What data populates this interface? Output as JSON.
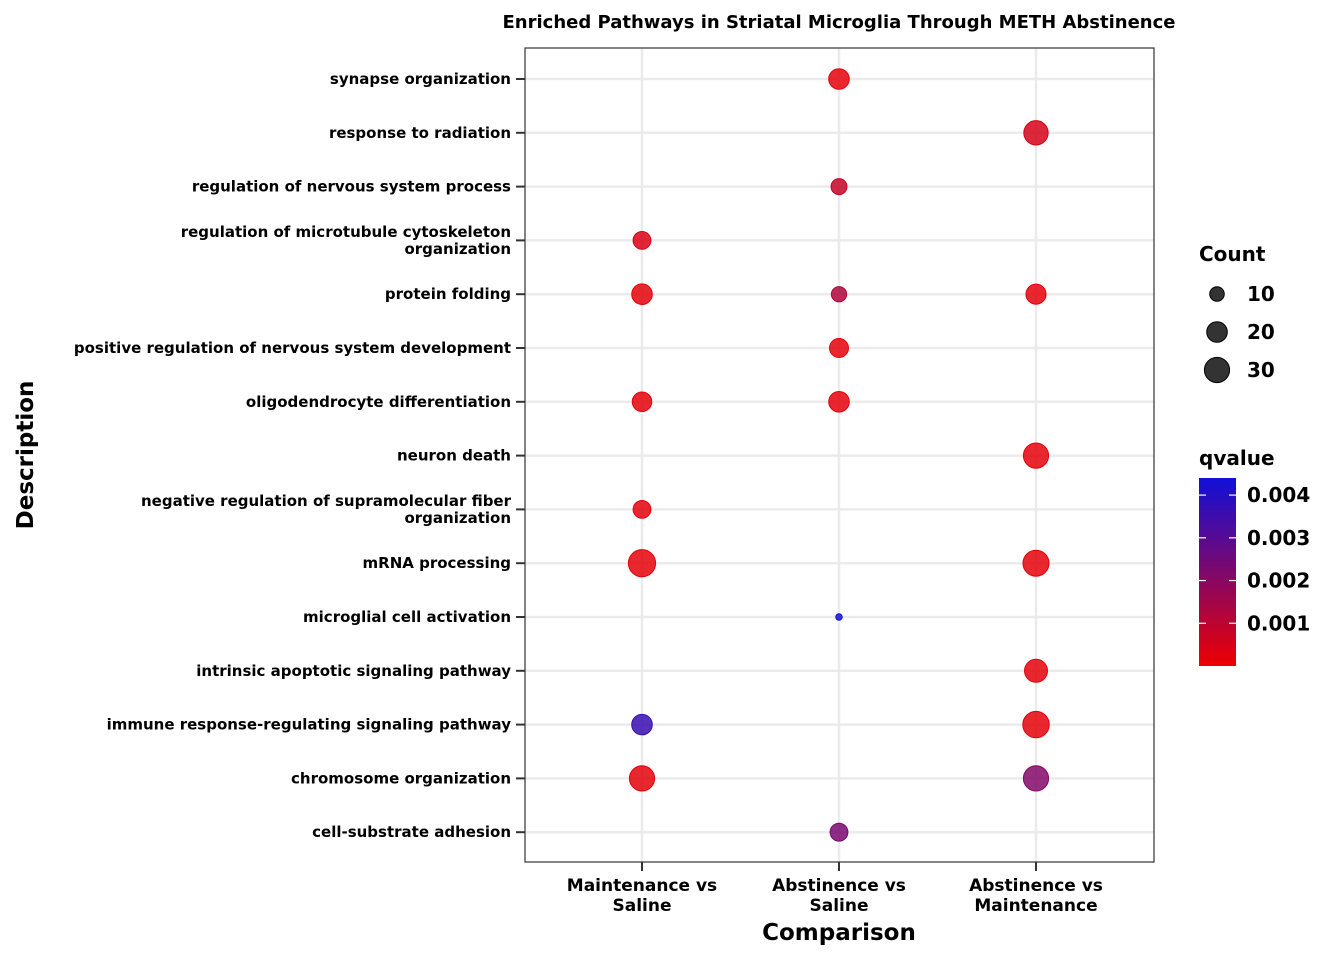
{
  "chart_data": {
    "type": "scatter",
    "title": "Enriched Pathways in Striatal Microglia Through METH Abstinence",
    "xlabel": "Comparison",
    "ylabel": "Description",
    "grid": true,
    "legend_position": "right",
    "x_categories": [
      [
        "Maintenance vs",
        "Saline"
      ],
      [
        "Abstinence vs",
        "Saline"
      ],
      [
        "Abstinence vs",
        "Maintenance"
      ]
    ],
    "y_categories": [
      [
        "synapse organization"
      ],
      [
        "response to radiation"
      ],
      [
        "regulation of nervous system process"
      ],
      [
        "regulation of microtubule cytoskeleton",
        "organization"
      ],
      [
        "protein folding"
      ],
      [
        "positive regulation of nervous system development"
      ],
      [
        "oligodendrocyte differentiation"
      ],
      [
        "neuron death"
      ],
      [
        "negative regulation of supramolecular fiber",
        "organization"
      ],
      [
        "mRNA processing"
      ],
      [
        "microglial cell activation"
      ],
      [
        "intrinsic apoptotic signaling pathway"
      ],
      [
        "immune response-regulating signaling pathway"
      ],
      [
        "chromosome organization"
      ],
      [
        "cell-substrate adhesion"
      ]
    ],
    "points": [
      {
        "y": 0,
        "x": 1,
        "count": 20,
        "qvalue": 0.0002
      },
      {
        "y": 1,
        "x": 2,
        "count": 28,
        "qvalue": 0.0005
      },
      {
        "y": 2,
        "x": 1,
        "count": 12,
        "qvalue": 0.0008
      },
      {
        "y": 3,
        "x": 0,
        "count": 15,
        "qvalue": 0.0004
      },
      {
        "y": 4,
        "x": 0,
        "count": 20,
        "qvalue": 0.0002
      },
      {
        "y": 4,
        "x": 1,
        "count": 11,
        "qvalue": 0.0012
      },
      {
        "y": 4,
        "x": 2,
        "count": 19,
        "qvalue": 0.0002
      },
      {
        "y": 5,
        "x": 1,
        "count": 17,
        "qvalue": 0.0002
      },
      {
        "y": 6,
        "x": 0,
        "count": 18,
        "qvalue": 0.0002
      },
      {
        "y": 6,
        "x": 1,
        "count": 20,
        "qvalue": 0.0002
      },
      {
        "y": 7,
        "x": 2,
        "count": 30,
        "qvalue": 0.0002
      },
      {
        "y": 8,
        "x": 0,
        "count": 15,
        "qvalue": 0.0002
      },
      {
        "y": 9,
        "x": 0,
        "count": 35,
        "qvalue": 0.0002
      },
      {
        "y": 9,
        "x": 2,
        "count": 32,
        "qvalue": 0.0002
      },
      {
        "y": 10,
        "x": 1,
        "count": 2,
        "qvalue": 0.0045
      },
      {
        "y": 11,
        "x": 2,
        "count": 25,
        "qvalue": 0.0002
      },
      {
        "y": 12,
        "x": 0,
        "count": 20,
        "qvalue": 0.0036
      },
      {
        "y": 12,
        "x": 2,
        "count": 33,
        "qvalue": 0.0002
      },
      {
        "y": 13,
        "x": 0,
        "count": 30,
        "qvalue": 0.0002
      },
      {
        "y": 13,
        "x": 2,
        "count": 30,
        "qvalue": 0.0021
      },
      {
        "y": 14,
        "x": 1,
        "count": 15,
        "qvalue": 0.0023
      }
    ],
    "legend_count": {
      "title": "Count",
      "values": [
        10,
        20,
        30
      ],
      "labels": [
        "10",
        "20",
        "30"
      ]
    },
    "legend_qvalue": {
      "title": "qvalue",
      "range": [
        0,
        0.0044
      ],
      "ticks": [
        0.001,
        0.002,
        0.003,
        0.004
      ],
      "labels": [
        "0.001",
        "0.002",
        "0.003",
        "0.004"
      ],
      "low_color": "#ee0000",
      "high_color": "#1010d8"
    },
    "point_alpha": 0.85
  }
}
